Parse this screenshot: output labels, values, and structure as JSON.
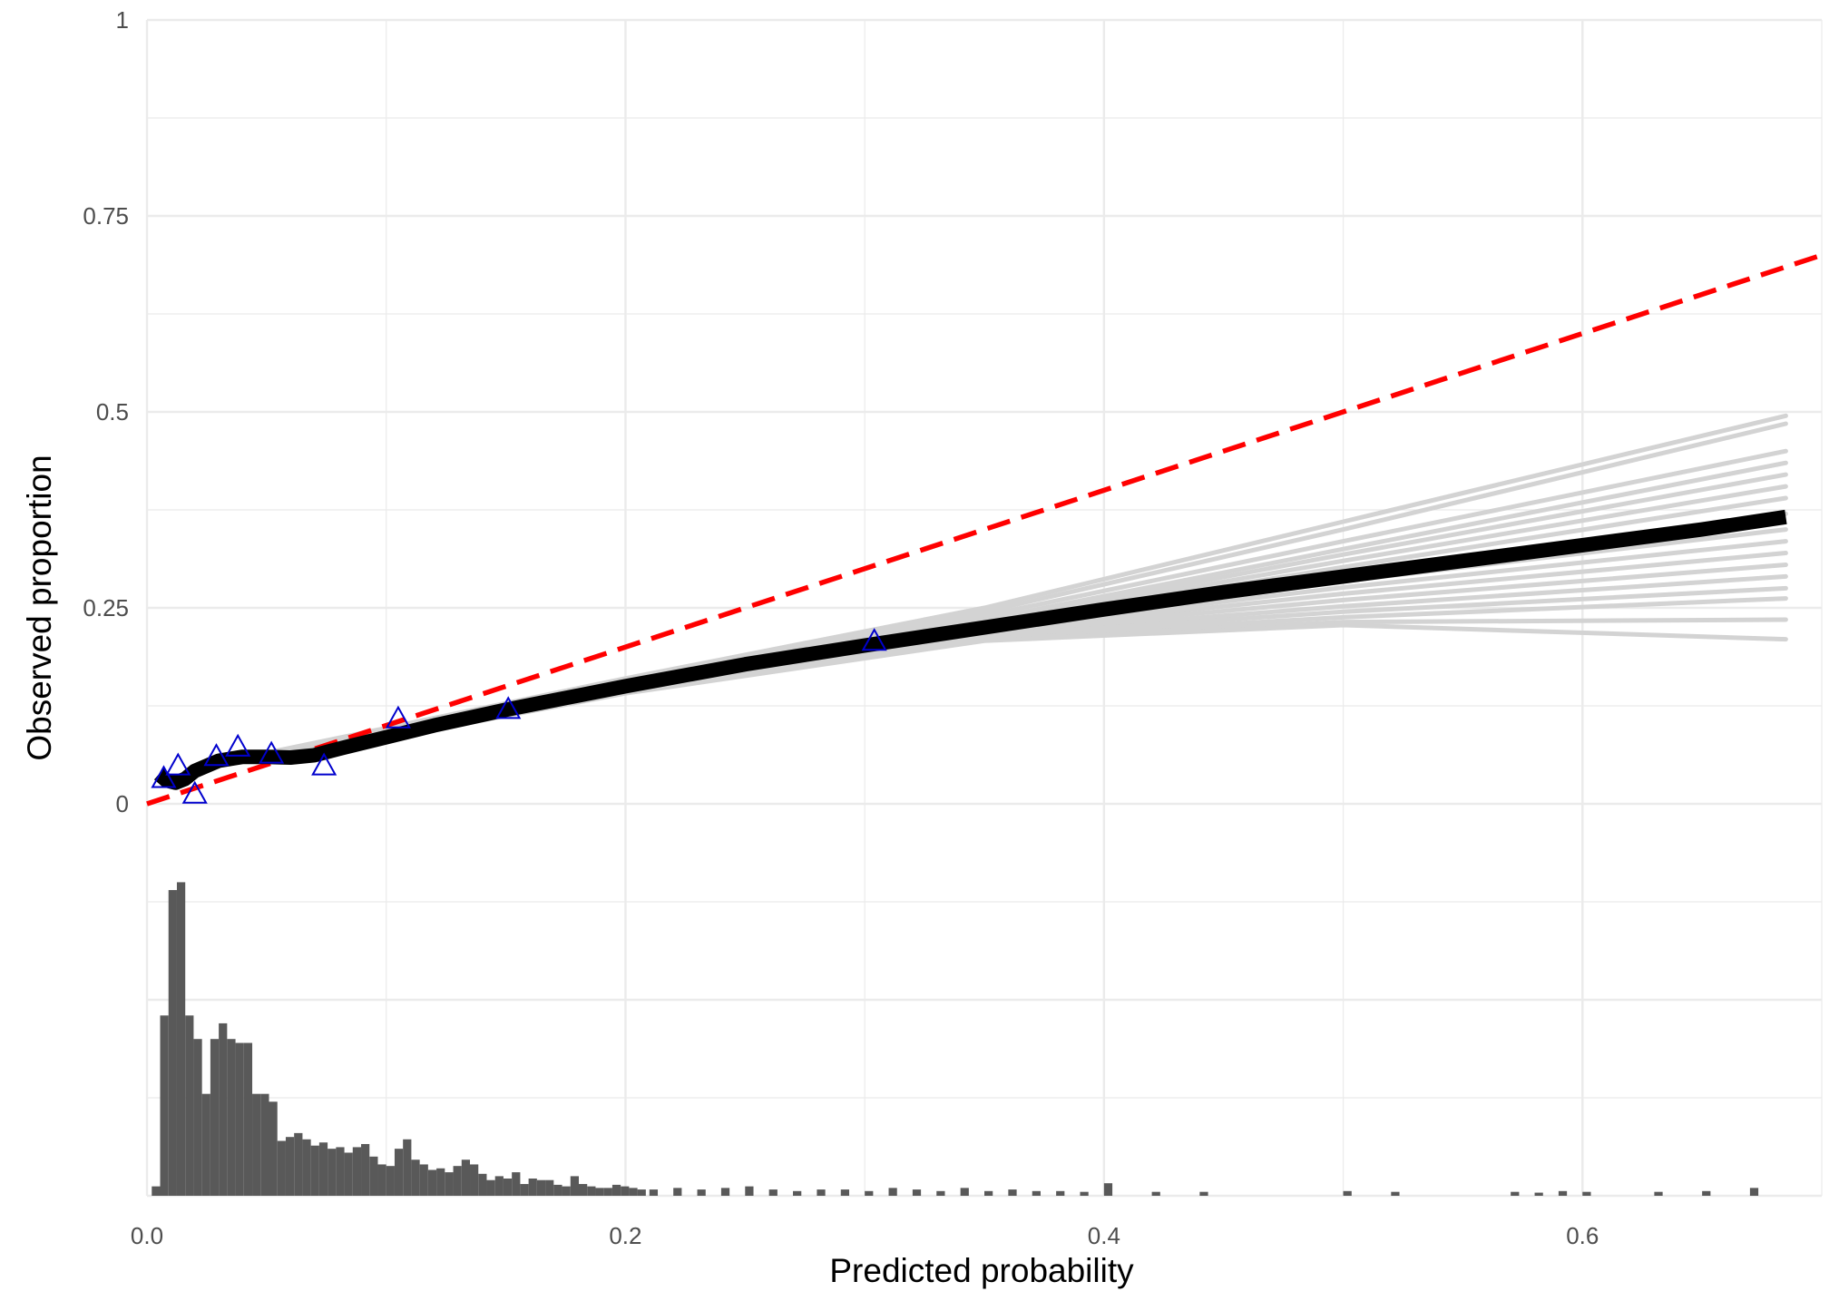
{
  "chart_data": {
    "type": "line",
    "title": "",
    "xlabel": "Predicted probability",
    "ylabel": "Observed proportion",
    "xlim": [
      0,
      0.7
    ],
    "ylim": [
      -0.5,
      1
    ],
    "x_ticks": [
      {
        "value": 0,
        "label": "0.0"
      },
      {
        "value": 0.2,
        "label": "0.2"
      },
      {
        "value": 0.4,
        "label": "0.4"
      },
      {
        "value": 0.6,
        "label": "0.6"
      }
    ],
    "y_ticks": [
      {
        "value": 0,
        "label": "0"
      },
      {
        "value": 0.25,
        "label": "0.25"
      },
      {
        "value": 0.5,
        "label": "0.5"
      },
      {
        "value": 0.75,
        "label": "0.75"
      },
      {
        "value": 1,
        "label": "1"
      }
    ],
    "grid": true,
    "colors": {
      "reference_line": "#ff0000",
      "calibration_curve": "#000000",
      "bootstrap_curves": "#d3d3d3",
      "grouped_points": "#0000cd",
      "histogram": "#595959",
      "grid": "#ebebeb"
    },
    "reference_line": {
      "style": "dashed",
      "x": [
        0,
        0.7
      ],
      "y": [
        0,
        0.7
      ]
    },
    "calibration_curve": {
      "x": [
        0.005,
        0.008,
        0.012,
        0.016,
        0.02,
        0.03,
        0.04,
        0.05,
        0.06,
        0.07,
        0.08,
        0.1,
        0.12,
        0.15,
        0.2,
        0.25,
        0.3,
        0.35,
        0.4,
        0.45,
        0.5,
        0.55,
        0.6,
        0.65,
        0.685
      ],
      "y": [
        0.038,
        0.03,
        0.027,
        0.032,
        0.042,
        0.055,
        0.06,
        0.06,
        0.059,
        0.062,
        0.07,
        0.085,
        0.1,
        0.12,
        0.15,
        0.178,
        0.202,
        0.225,
        0.248,
        0.27,
        0.29,
        0.31,
        0.33,
        0.35,
        0.366
      ]
    },
    "bootstrap_curves": [
      {
        "x": [
          0.05,
          0.2,
          0.35,
          0.5,
          0.685
        ],
        "y": [
          0.065,
          0.16,
          0.25,
          0.36,
          0.495
        ]
      },
      {
        "x": [
          0.05,
          0.2,
          0.35,
          0.5,
          0.685
        ],
        "y": [
          0.064,
          0.158,
          0.245,
          0.35,
          0.485
        ]
      },
      {
        "x": [
          0.05,
          0.2,
          0.35,
          0.5,
          0.685
        ],
        "y": [
          0.063,
          0.156,
          0.24,
          0.335,
          0.45
        ]
      },
      {
        "x": [
          0.05,
          0.2,
          0.35,
          0.5,
          0.685
        ],
        "y": [
          0.062,
          0.154,
          0.235,
          0.325,
          0.435
        ]
      },
      {
        "x": [
          0.05,
          0.2,
          0.35,
          0.5,
          0.685
        ],
        "y": [
          0.061,
          0.153,
          0.232,
          0.318,
          0.42
        ]
      },
      {
        "x": [
          0.05,
          0.2,
          0.35,
          0.5,
          0.685
        ],
        "y": [
          0.06,
          0.152,
          0.23,
          0.31,
          0.405
        ]
      },
      {
        "x": [
          0.05,
          0.2,
          0.35,
          0.5,
          0.685
        ],
        "y": [
          0.06,
          0.151,
          0.228,
          0.302,
          0.39
        ]
      },
      {
        "x": [
          0.05,
          0.2,
          0.35,
          0.5,
          0.685
        ],
        "y": [
          0.059,
          0.15,
          0.226,
          0.292,
          0.37
        ]
      },
      {
        "x": [
          0.05,
          0.2,
          0.35,
          0.5,
          0.685
        ],
        "y": [
          0.059,
          0.149,
          0.224,
          0.284,
          0.35
        ]
      },
      {
        "x": [
          0.05,
          0.2,
          0.35,
          0.5,
          0.685
        ],
        "y": [
          0.058,
          0.148,
          0.222,
          0.276,
          0.335
        ]
      },
      {
        "x": [
          0.05,
          0.2,
          0.35,
          0.5,
          0.685
        ],
        "y": [
          0.058,
          0.147,
          0.22,
          0.268,
          0.32
        ]
      },
      {
        "x": [
          0.05,
          0.2,
          0.35,
          0.5,
          0.685
        ],
        "y": [
          0.057,
          0.146,
          0.218,
          0.26,
          0.305
        ]
      },
      {
        "x": [
          0.05,
          0.2,
          0.35,
          0.5,
          0.685
        ],
        "y": [
          0.057,
          0.145,
          0.216,
          0.252,
          0.29
        ]
      },
      {
        "x": [
          0.05,
          0.2,
          0.35,
          0.5,
          0.685
        ],
        "y": [
          0.056,
          0.144,
          0.214,
          0.245,
          0.275
        ]
      },
      {
        "x": [
          0.05,
          0.2,
          0.35,
          0.5,
          0.685
        ],
        "y": [
          0.056,
          0.143,
          0.212,
          0.238,
          0.262
        ]
      },
      {
        "x": [
          0.05,
          0.2,
          0.35,
          0.5,
          0.685
        ],
        "y": [
          0.055,
          0.142,
          0.21,
          0.232,
          0.235
        ]
      },
      {
        "x": [
          0.05,
          0.2,
          0.35,
          0.5,
          0.685
        ],
        "y": [
          0.055,
          0.141,
          0.208,
          0.228,
          0.21
        ]
      }
    ],
    "grouped_points": {
      "marker": "triangle-open",
      "x": [
        0.007,
        0.013,
        0.02,
        0.029,
        0.038,
        0.052,
        0.074,
        0.105,
        0.151,
        0.304
      ],
      "y": [
        0.032,
        0.048,
        0.012,
        0.06,
        0.072,
        0.063,
        0.048,
        0.108,
        0.12,
        0.207
      ]
    },
    "histogram": {
      "baseline": -0.5,
      "max_height": 0.4,
      "bin_width": 0.0035,
      "bin_starts": [
        0.002,
        0.0055,
        0.009,
        0.0125,
        0.016,
        0.0195,
        0.023,
        0.0265,
        0.03,
        0.0335,
        0.037,
        0.0405,
        0.044,
        0.0475,
        0.051,
        0.0545,
        0.058,
        0.0615,
        0.065,
        0.0685,
        0.072,
        0.0755,
        0.079,
        0.0825,
        0.086,
        0.0895,
        0.093,
        0.0965,
        0.1,
        0.1035,
        0.107,
        0.1105,
        0.114,
        0.1175,
        0.121,
        0.1245,
        0.128,
        0.1315,
        0.135,
        0.1385,
        0.142,
        0.1455,
        0.149,
        0.1525,
        0.156,
        0.1595,
        0.163,
        0.1665,
        0.17,
        0.1735,
        0.177,
        0.1805,
        0.184,
        0.1875,
        0.191,
        0.1945,
        0.198,
        0.2015,
        0.205,
        0.21,
        0.22,
        0.23,
        0.24,
        0.25,
        0.26,
        0.27,
        0.28,
        0.29,
        0.3,
        0.31,
        0.32,
        0.33,
        0.34,
        0.35,
        0.36,
        0.37,
        0.38,
        0.39,
        0.4,
        0.42,
        0.44,
        0.5,
        0.52,
        0.57,
        0.58,
        0.59,
        0.6,
        0.63,
        0.65,
        0.67
      ],
      "counts": [
        0.012,
        0.23,
        0.39,
        0.4,
        0.23,
        0.2,
        0.13,
        0.2,
        0.22,
        0.2,
        0.195,
        0.195,
        0.13,
        0.13,
        0.12,
        0.07,
        0.075,
        0.08,
        0.072,
        0.064,
        0.068,
        0.06,
        0.062,
        0.055,
        0.062,
        0.066,
        0.05,
        0.04,
        0.038,
        0.06,
        0.072,
        0.046,
        0.04,
        0.033,
        0.035,
        0.03,
        0.038,
        0.046,
        0.04,
        0.028,
        0.02,
        0.025,
        0.022,
        0.03,
        0.015,
        0.022,
        0.02,
        0.02,
        0.014,
        0.012,
        0.025,
        0.015,
        0.012,
        0.01,
        0.01,
        0.014,
        0.012,
        0.01,
        0.008,
        0.008,
        0.01,
        0.008,
        0.01,
        0.012,
        0.008,
        0.006,
        0.008,
        0.008,
        0.006,
        0.01,
        0.008,
        0.006,
        0.01,
        0.006,
        0.008,
        0.006,
        0.006,
        0.005,
        0.016,
        0.005,
        0.005,
        0.006,
        0.005,
        0.005,
        0.004,
        0.006,
        0.005,
        0.005,
        0.006,
        0.01
      ]
    }
  }
}
